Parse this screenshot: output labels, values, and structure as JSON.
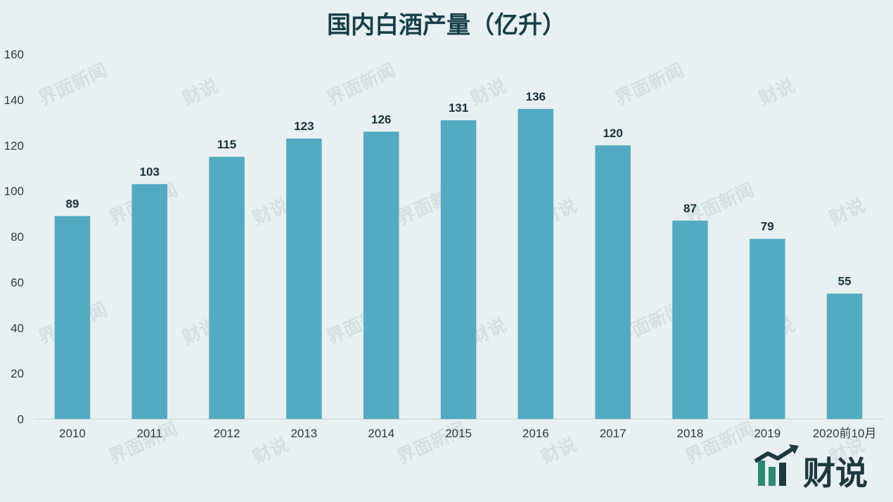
{
  "chart_data": {
    "type": "bar",
    "title": "国内白酒产量（亿升）",
    "xlabel": "",
    "ylabel": "",
    "categories": [
      "2010",
      "2011",
      "2012",
      "2013",
      "2014",
      "2015",
      "2016",
      "2017",
      "2018",
      "2019",
      "2020前10月"
    ],
    "values": [
      89,
      103,
      115,
      123,
      126,
      131,
      136,
      120,
      87,
      79,
      55
    ],
    "ylim": [
      0,
      160
    ],
    "yticks": [
      0,
      20,
      40,
      60,
      80,
      100,
      120,
      140,
      160
    ],
    "grid": false,
    "legend": "none",
    "bar_color": "#53aac3",
    "show_data_labels": true
  },
  "watermark": {
    "text_a": "界面新闻",
    "text_b": "财说"
  },
  "logo": {
    "text": "财说",
    "icon": "bar-chart-arrow-logo-icon"
  },
  "colors": {
    "background": "#e8f0f1",
    "title": "#16404a",
    "axis": "#c9d3d5"
  }
}
